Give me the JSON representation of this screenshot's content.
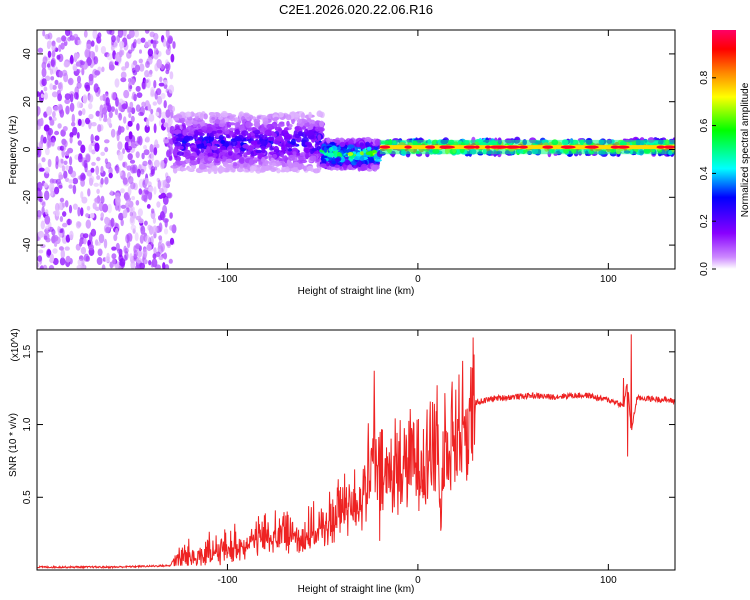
{
  "title": "C2E1.2026.020.22.06.R16",
  "colors": {
    "snr_line": "#ee2222",
    "axis": "#000000"
  },
  "chart_data": [
    {
      "type": "heatmap",
      "name": "spectrogram",
      "xlabel": "Height of straight line (km)",
      "ylabel": "Frequency (Hz)",
      "xlim": [
        -200,
        135
      ],
      "ylim": [
        -50,
        50
      ],
      "xticks": [
        -100,
        0,
        100
      ],
      "xtick_labels": [
        "-100",
        "0",
        "100"
      ],
      "yticks": [
        40,
        20,
        0,
        -20,
        -40
      ],
      "ytick_labels": [
        "40",
        "20",
        "0",
        "-20",
        "-40"
      ],
      "colorbar": {
        "label": "Normalized spectral amplitude",
        "range": [
          0,
          1
        ],
        "ticks": [
          0.0,
          0.2,
          0.4,
          0.6,
          0.8
        ],
        "tick_labels": [
          "0.0",
          "0.2",
          "0.4",
          "0.6",
          "0.8"
        ],
        "colormap": [
          "#ffffff",
          "#cc88ff",
          "#8800ff",
          "#0000ff",
          "#00ffff",
          "#00ff00",
          "#ffff00",
          "#ff8800",
          "#ff0000",
          "#ff0066"
        ]
      },
      "regions": [
        {
          "x_range": [
            -200,
            -128
          ],
          "freq_range": [
            -50,
            50
          ],
          "amplitude": 0.15,
          "description": "broadband noise"
        },
        {
          "x_range": [
            -128,
            -50
          ],
          "freq_center": 3,
          "freq_halfwidth": 12,
          "amplitude": 0.3
        },
        {
          "x_range": [
            -50,
            -20
          ],
          "freq_center": -2,
          "freq_halfwidth": 6,
          "amplitude": 0.55
        },
        {
          "x_range": [
            -20,
            135
          ],
          "freq_center": 1,
          "freq_halfwidth": 3,
          "amplitude": 0.95
        }
      ]
    },
    {
      "type": "line",
      "name": "snr",
      "xlabel": "Height of straight line (km)",
      "ylabel": "SNR (10 * v/v)",
      "multiplier": "(x10^4)",
      "xlim": [
        -200,
        135
      ],
      "ylim": [
        0,
        1.65
      ],
      "xticks": [
        -100,
        0,
        100
      ],
      "xtick_labels": [
        "-100",
        "0",
        "100"
      ],
      "yticks": [
        1.5,
        1.0,
        0.5
      ],
      "ytick_labels": [
        "1.5",
        "1.0",
        "0.5"
      ],
      "series": [
        {
          "name": "SNR",
          "x": [
            -200,
            -160,
            -130,
            -128,
            -120,
            -110,
            -100,
            -90,
            -80,
            -70,
            -60,
            -50,
            -40,
            -30,
            -25,
            -22,
            -20,
            -15,
            -10,
            -5,
            0,
            5,
            10,
            12,
            14,
            20,
            25,
            30,
            40,
            50,
            60,
            70,
            80,
            90,
            95,
            100,
            105,
            108,
            110,
            112,
            115,
            120,
            130,
            135
          ],
          "values": [
            0.02,
            0.02,
            0.03,
            0.08,
            0.1,
            0.12,
            0.15,
            0.2,
            0.25,
            0.28,
            0.25,
            0.3,
            0.45,
            0.55,
            0.7,
            0.8,
            0.65,
            0.72,
            0.75,
            0.78,
            0.82,
            0.88,
            0.92,
            0.4,
            0.98,
            1.02,
            1.08,
            1.15,
            1.18,
            1.19,
            1.2,
            1.19,
            1.2,
            1.2,
            1.18,
            1.17,
            1.15,
            1.12,
            1.3,
            0.95,
            1.18,
            1.18,
            1.17,
            1.16
          ]
        }
      ],
      "spikes": [
        {
          "x": -23,
          "value": 1.37
        },
        {
          "x": -20,
          "value": 0.2
        },
        {
          "x": 10,
          "value": 1.27
        },
        {
          "x": 12,
          "value": 0.27
        },
        {
          "x": 108,
          "value": 1.32
        },
        {
          "x": 110,
          "value": 0.78
        },
        {
          "x": 112,
          "value": 1.62
        }
      ]
    }
  ]
}
